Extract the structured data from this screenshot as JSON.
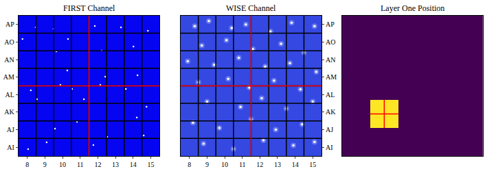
{
  "chart_data": [
    {
      "type": "scatter",
      "title": "FIRST Channel",
      "color": "#ffffff",
      "grid": true,
      "xlim": [
        7.5,
        15.5
      ],
      "xticks": [
        8,
        9,
        10,
        11,
        12,
        13,
        14,
        15
      ],
      "ylim": [
        -0.5,
        7.5
      ],
      "yticks": [
        {
          "value": 0,
          "label": "AI"
        },
        {
          "value": 1,
          "label": "AJ"
        },
        {
          "value": 2,
          "label": "AK"
        },
        {
          "value": 3,
          "label": "AL"
        },
        {
          "value": 4,
          "label": "AM"
        },
        {
          "value": 5,
          "label": "AN"
        },
        {
          "value": 6,
          "label": "AO"
        },
        {
          "value": 7,
          "label": "AP"
        }
      ],
      "crosshair": {
        "x": 11.5,
        "y": 3.5
      },
      "x": [
        8.48,
        9.49,
        10.31,
        11.83,
        13.31,
        14.84,
        7.73,
        9.65,
        12.22,
        14.02,
        10.27,
        12.42,
        14.25,
        9.88,
        10.54,
        12.14,
        8.2,
        13.59,
        8.55,
        11.21,
        14.76,
        14.21,
        10.82,
        9.57,
        12.53,
        14.6,
        9.1,
        11.75,
        8.05
      ],
      "y": [
        6.84,
        6.76,
        6.17,
        6.91,
        6.84,
        6.64,
        6.17,
        5.47,
        5.51,
        5.74,
        4.38,
        4.03,
        4.1,
        3.56,
        3.32,
        3.56,
        3.25,
        3.32,
        2.74,
        2.74,
        2.31,
        1.69,
        1.45,
        1.06,
        0.59,
        0.67,
        0.28,
        0.12,
        -0.11
      ]
    },
    {
      "type": "scatter",
      "title": "WISE Channel",
      "color": "#ffffff",
      "grid": true,
      "xlim": [
        7.5,
        15.5
      ],
      "xticks": [
        8,
        9,
        10,
        11,
        12,
        13,
        14,
        15
      ],
      "ylim": [
        -0.5,
        7.5
      ],
      "yticks": [
        {
          "value": 0,
          "label": "AI"
        },
        {
          "value": 1,
          "label": "AJ"
        },
        {
          "value": 2,
          "label": "AK"
        },
        {
          "value": 3,
          "label": "AL"
        },
        {
          "value": 4,
          "label": "AM"
        },
        {
          "value": 5,
          "label": "AN"
        },
        {
          "value": 6,
          "label": "AO"
        },
        {
          "value": 7,
          "label": "AP"
        }
      ],
      "crosshair": {
        "x": 11.5,
        "y": 3.5
      },
      "x": [
        8.3,
        9.1,
        10.4,
        11.2,
        12.6,
        13.8,
        15.1,
        8.7,
        10.1,
        11.6,
        13.2,
        14.5,
        7.9,
        9.4,
        10.8,
        12.3,
        13.7,
        15.2,
        8.5,
        10.2,
        11.4,
        12.8,
        14.3,
        9.0,
        10.9,
        12.1,
        13.5,
        15.0,
        8.2,
        9.7,
        11.5,
        12.9,
        14.4,
        8.8,
        10.5,
        12.2,
        13.9,
        15.1
      ],
      "y": [
        6.9,
        7.2,
        6.8,
        7.0,
        6.6,
        7.1,
        6.9,
        5.8,
        6.1,
        5.6,
        5.9,
        5.4,
        4.9,
        4.7,
        5.1,
        4.6,
        4.8,
        4.3,
        3.7,
        3.9,
        3.4,
        3.8,
        3.3,
        2.6,
        2.3,
        2.8,
        2.2,
        2.6,
        1.4,
        1.1,
        1.6,
        1.0,
        1.3,
        0.2,
        -0.1,
        0.4,
        0.1,
        0.3
      ]
    },
    {
      "type": "heatmap",
      "title": "Layer One Position",
      "tick_labels": false,
      "colors": [
        "#440154",
        "#fde725"
      ],
      "xlim": [
        -0.5,
        9.5
      ],
      "ylim": [
        -0.5,
        9.5
      ],
      "crosshair": {
        "x": 2.5,
        "y": 2.5
      },
      "cells": [
        [
          0,
          0,
          0,
          0,
          0,
          0,
          0,
          0,
          0,
          0
        ],
        [
          0,
          0,
          0,
          0,
          0,
          0,
          0,
          0,
          0,
          0
        ],
        [
          0,
          0,
          1,
          1,
          0,
          0,
          0,
          0,
          0,
          0
        ],
        [
          0,
          0,
          1,
          1,
          0,
          0,
          0,
          0,
          0,
          0
        ],
        [
          0,
          0,
          0,
          0,
          0,
          0,
          0,
          0,
          0,
          0
        ],
        [
          0,
          0,
          0,
          0,
          0,
          0,
          0,
          0,
          0,
          0
        ],
        [
          0,
          0,
          0,
          0,
          0,
          0,
          0,
          0,
          0,
          0
        ],
        [
          0,
          0,
          0,
          0,
          0,
          0,
          0,
          0,
          0,
          0
        ],
        [
          0,
          0,
          0,
          0,
          0,
          0,
          0,
          0,
          0,
          0
        ],
        [
          0,
          0,
          0,
          0,
          0,
          0,
          0,
          0,
          0,
          0
        ]
      ]
    }
  ]
}
